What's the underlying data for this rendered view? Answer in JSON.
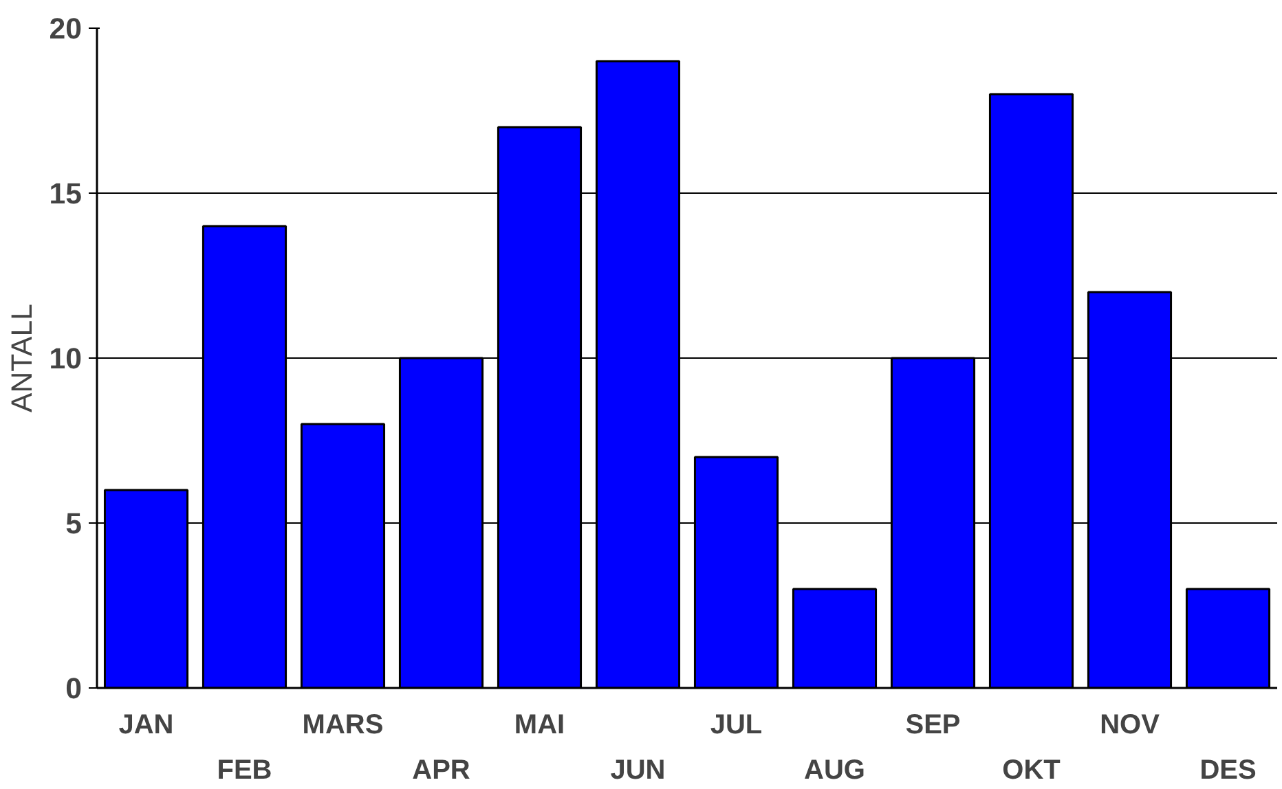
{
  "chart_data": {
    "type": "bar",
    "ylabel": "ANTALL",
    "categories": [
      "JAN",
      "FEB",
      "MARS",
      "APR",
      "MAI",
      "JUN",
      "JUL",
      "AUG",
      "SEP",
      "OKT",
      "NOV",
      "DES"
    ],
    "values": [
      6,
      14,
      8,
      10,
      17,
      19,
      7,
      3,
      10,
      18,
      12,
      3
    ],
    "color": "#0000ff",
    "ylim": [
      0,
      20
    ],
    "yticks": [
      0,
      5,
      10,
      15,
      20
    ],
    "grid": "y"
  }
}
